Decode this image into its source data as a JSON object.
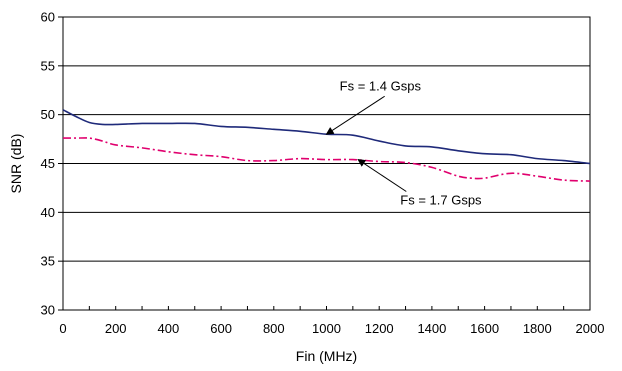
{
  "chart_data": {
    "type": "line",
    "title": "",
    "xlabel": "Fin (MHz)",
    "ylabel": "SNR (dB)",
    "xlim": [
      0,
      2000
    ],
    "ylim": [
      30,
      60
    ],
    "x_ticks": [
      "0",
      "200",
      "400",
      "600",
      "800",
      "1000",
      "1200",
      "1400",
      "1600",
      "1800",
      "2000"
    ],
    "y_ticks": [
      "30",
      "35",
      "40",
      "45",
      "50",
      "55",
      "60"
    ],
    "grid": "horizontal",
    "legend": "none",
    "series": [
      {
        "name": "Fs = 1.4 Gsps",
        "color": "#1f2a7a",
        "style": "solid",
        "x": [
          0,
          50,
          100,
          150,
          200,
          300,
          400,
          500,
          600,
          700,
          800,
          900,
          1000,
          1100,
          1200,
          1300,
          1400,
          1500,
          1600,
          1700,
          1800,
          1900,
          2000
        ],
        "y": [
          50.5,
          49.8,
          49.2,
          49.0,
          49.0,
          49.1,
          49.1,
          49.1,
          48.8,
          48.7,
          48.5,
          48.3,
          48.0,
          47.9,
          47.3,
          46.8,
          46.7,
          46.3,
          46.0,
          45.9,
          45.5,
          45.3,
          45.0
        ]
      },
      {
        "name": "Fs = 1.7 Gsps",
        "color": "#e0006e",
        "style": "dash-dot",
        "x": [
          0,
          50,
          100,
          150,
          200,
          300,
          400,
          500,
          600,
          700,
          800,
          900,
          1000,
          1100,
          1200,
          1300,
          1400,
          1500,
          1550,
          1600,
          1700,
          1800,
          1900,
          2000
        ],
        "y": [
          47.6,
          47.6,
          47.6,
          47.3,
          46.9,
          46.6,
          46.2,
          45.9,
          45.7,
          45.3,
          45.3,
          45.5,
          45.4,
          45.4,
          45.2,
          45.1,
          44.6,
          43.7,
          43.5,
          43.5,
          44.0,
          43.7,
          43.3,
          43.2
        ]
      }
    ],
    "annotations": [
      {
        "text": "Fs = 1.4 Gsps",
        "series": 0,
        "text_x": 1050,
        "text_y": 52.5,
        "arrow_x": 1000,
        "arrow_y": 48.0
      },
      {
        "text": "Fs = 1.7 Gsps",
        "series": 1,
        "text_x": 1280,
        "text_y": 40.8,
        "arrow_x": 1120,
        "arrow_y": 45.4
      }
    ]
  }
}
